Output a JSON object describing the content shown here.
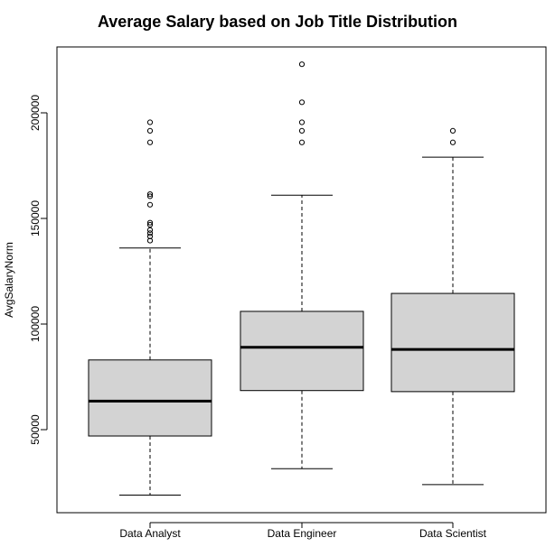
{
  "chart_data": {
    "type": "boxplot",
    "title": "Average Salary based on Job Title Distribution",
    "xlabel": "",
    "ylabel": "AvgSalaryNorm",
    "ylim": [
      10000,
      230000
    ],
    "yticks": [
      50000,
      100000,
      150000,
      200000
    ],
    "ytick_labels": [
      "50000",
      "100000",
      "150000",
      "200000"
    ],
    "categories": [
      "Data Analyst",
      "Data Engineer",
      "Data Scientist"
    ],
    "grid": false,
    "legend": "none",
    "box_fill": "#d3d3d3",
    "boxes": [
      {
        "name": "Data Analyst",
        "whisker_low": 19000,
        "q1": 47000,
        "median": 63500,
        "q3": 83000,
        "whisker_high": 136000,
        "outliers": [
          139500,
          141500,
          143000,
          144500,
          147000,
          148000,
          156500,
          160500,
          161500,
          186000,
          191500,
          195500
        ]
      },
      {
        "name": "Data Engineer",
        "whisker_low": 31500,
        "q1": 68500,
        "median": 89000,
        "q3": 106000,
        "whisker_high": 161000,
        "outliers": [
          186000,
          191500,
          195500,
          205000,
          223000
        ]
      },
      {
        "name": "Data Scientist",
        "whisker_low": 24000,
        "q1": 68000,
        "median": 88000,
        "q3": 114500,
        "whisker_high": 179000,
        "outliers": [
          186000,
          191500
        ]
      }
    ]
  }
}
